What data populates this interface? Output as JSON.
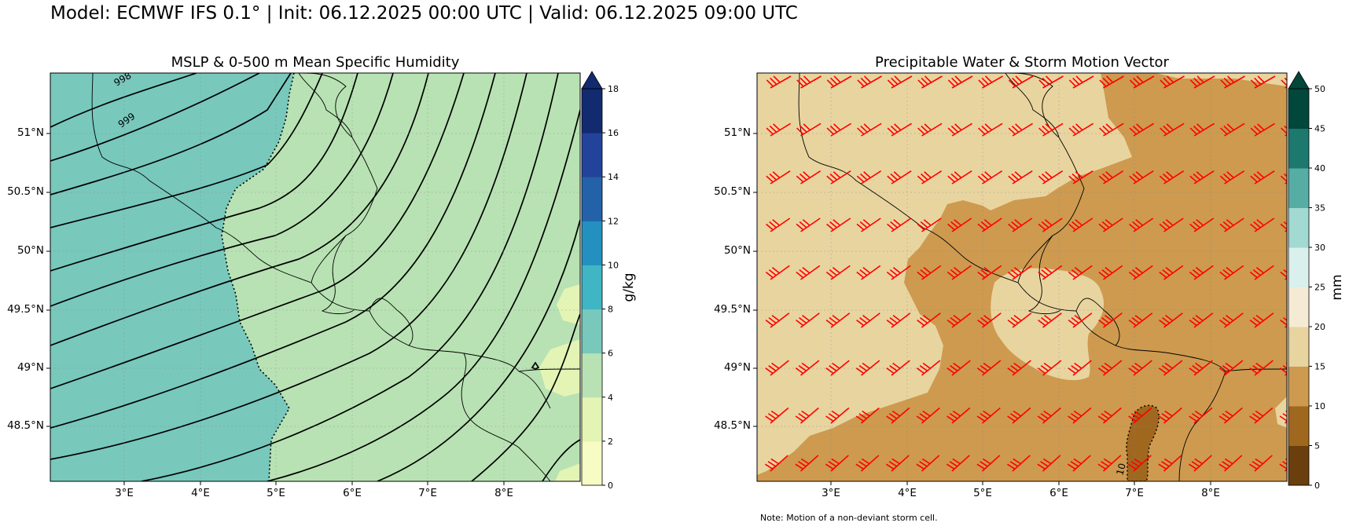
{
  "figure": {
    "title": "Model: ECMWF IFS 0.1° | Init: 06.12.2025 00:00 UTC | Valid: 06.12.2025 09:00 UTC",
    "note": "Note: Motion of a non-deviant storm cell."
  },
  "panels": [
    {
      "id": "left",
      "title": "MSLP & 0-500 m Mean Specific Humidity",
      "x_tick_labels": [
        "3°E",
        "4°E",
        "5°E",
        "6°E",
        "7°E",
        "8°E"
      ],
      "y_tick_labels": [
        "51°N",
        "50.5°N",
        "50°N",
        "49.5°N",
        "49°N",
        "48.5°N"
      ],
      "colorbar": {
        "label": "g/kg",
        "tick_labels": [
          "0",
          "2",
          "4",
          "6",
          "8",
          "10",
          "12",
          "14",
          "16",
          "18"
        ],
        "colors": [
          "#f7fcc5",
          "#e3f4b4",
          "#b8e2b3",
          "#78c8bc",
          "#40b5c4",
          "#2490bf",
          "#2362a9",
          "#23439a",
          "#122a6f"
        ],
        "extend": "max"
      },
      "contour_labels": [
        "998",
        "999"
      ],
      "fill_colors": {
        "moist": "#78c8bc",
        "mid": "#b8e2b3",
        "dry": "#e3f4b4"
      }
    },
    {
      "id": "right",
      "title": "Precipitable Water & Storm Motion Vector",
      "x_tick_labels": [
        "3°E",
        "4°E",
        "5°E",
        "6°E",
        "7°E",
        "8°E"
      ],
      "y_tick_labels": [
        "51°N",
        "50.5°N",
        "50°N",
        "49.5°N",
        "49°N",
        "48.5°N"
      ],
      "colorbar": {
        "label": "mm",
        "tick_labels": [
          "0",
          "5",
          "10",
          "15",
          "20",
          "25",
          "30",
          "35",
          "40",
          "45",
          "50"
        ],
        "colors": [
          "#6b3f0d",
          "#a0671f",
          "#cd9a4f",
          "#e8d49f",
          "#f5ebd5",
          "#daf0ec",
          "#a2d9d0",
          "#56ada4",
          "#1d786d",
          "#01473a"
        ],
        "extend": "max"
      },
      "contour_labels": [
        "10"
      ],
      "fill_colors": {
        "pw_15_20": "#e8d49f",
        "pw_10_15": "#cd9a4f",
        "pw_5_10": "#a0671f"
      },
      "barb_color": "#ff0000"
    }
  ]
}
